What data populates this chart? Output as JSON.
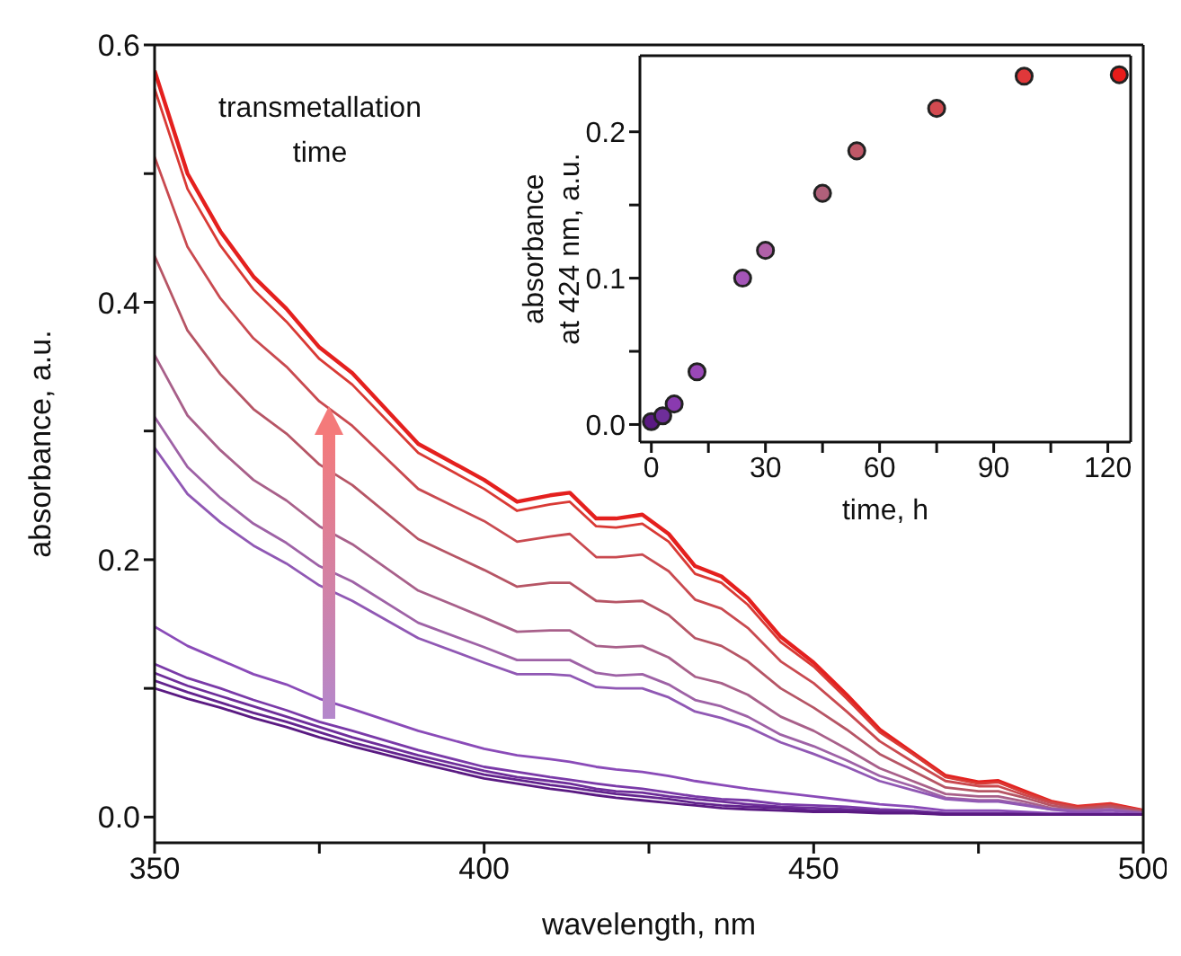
{
  "chart_data": [
    {
      "type": "line",
      "xlabel": "wavelength, nm",
      "ylabel": "absorbance, a.u.",
      "annotations": [
        "transmetallation time"
      ],
      "marker": "none",
      "line_style": "solid",
      "xlim": [
        350,
        500
      ],
      "ylim": [
        -0.02,
        0.6
      ],
      "xticks": [
        350,
        {
          "value": 375,
          "label": null
        },
        400,
        {
          "value": 425,
          "label": null
        },
        450,
        {
          "value": 475,
          "label": null
        },
        500
      ],
      "yticks": [
        {
          "value": 0,
          "label": "0.0"
        },
        {
          "value": 0.1,
          "label": null
        },
        0.2,
        {
          "value": 0.3,
          "label": null
        },
        0.4,
        {
          "value": 0.5,
          "label": null
        },
        0.6
      ],
      "x": [
        350,
        355,
        360,
        365,
        370,
        375,
        380,
        390,
        400,
        405,
        410,
        413,
        417,
        420,
        424,
        428,
        432,
        436,
        440,
        445,
        450,
        455,
        460,
        465,
        470,
        475,
        478,
        482,
        486,
        490,
        495,
        500
      ],
      "series": [
        {
          "color": "#e4201e",
          "values": [
            0.58,
            0.5,
            0.455,
            0.42,
            0.395,
            0.365,
            0.345,
            0.29,
            0.262,
            0.245,
            0.25,
            0.252,
            0.232,
            0.232,
            0.235,
            0.22,
            0.195,
            0.187,
            0.17,
            0.14,
            0.12,
            0.095,
            0.068,
            0.05,
            0.032,
            0.027,
            0.028,
            0.02,
            0.012,
            0.008,
            0.01,
            0.005
          ]
        },
        {
          "color": "#d93a35",
          "values": [
            0.566,
            0.488,
            0.444,
            0.41,
            0.385,
            0.356,
            0.336,
            0.283,
            0.255,
            0.238,
            0.243,
            0.245,
            0.226,
            0.225,
            0.228,
            0.214,
            0.189,
            0.182,
            0.165,
            0.136,
            0.117,
            0.092,
            0.066,
            0.049,
            0.031,
            0.026,
            0.027,
            0.019,
            0.012,
            0.008,
            0.01,
            0.005
          ]
        },
        {
          "color": "#c94a50",
          "values": [
            0.513,
            0.443,
            0.403,
            0.372,
            0.35,
            0.323,
            0.304,
            0.255,
            0.23,
            0.214,
            0.218,
            0.22,
            0.202,
            0.202,
            0.204,
            0.191,
            0.169,
            0.162,
            0.147,
            0.121,
            0.104,
            0.082,
            0.059,
            0.043,
            0.028,
            0.024,
            0.024,
            0.017,
            0.011,
            0.007,
            0.009,
            0.005
          ]
        },
        {
          "color": "#b65565",
          "values": [
            0.436,
            0.378,
            0.344,
            0.317,
            0.298,
            0.274,
            0.258,
            0.216,
            0.192,
            0.179,
            0.182,
            0.182,
            0.168,
            0.167,
            0.168,
            0.157,
            0.139,
            0.133,
            0.121,
            0.1,
            0.085,
            0.068,
            0.049,
            0.036,
            0.023,
            0.02,
            0.02,
            0.015,
            0.009,
            0.006,
            0.008,
            0.004
          ]
        },
        {
          "color": "#a8608a",
          "values": [
            0.359,
            0.312,
            0.285,
            0.262,
            0.246,
            0.226,
            0.212,
            0.176,
            0.155,
            0.144,
            0.145,
            0.145,
            0.133,
            0.132,
            0.133,
            0.124,
            0.109,
            0.104,
            0.095,
            0.078,
            0.067,
            0.053,
            0.038,
            0.028,
            0.018,
            0.016,
            0.016,
            0.012,
            0.007,
            0.005,
            0.006,
            0.004
          ]
        },
        {
          "color": "#9e62a6",
          "values": [
            0.311,
            0.272,
            0.248,
            0.228,
            0.213,
            0.195,
            0.183,
            0.151,
            0.132,
            0.122,
            0.122,
            0.122,
            0.112,
            0.11,
            0.111,
            0.103,
            0.091,
            0.086,
            0.078,
            0.064,
            0.055,
            0.044,
            0.032,
            0.024,
            0.015,
            0.013,
            0.013,
            0.01,
            0.006,
            0.005,
            0.006,
            0.003
          ]
        },
        {
          "color": "#9058b4",
          "values": [
            0.287,
            0.251,
            0.229,
            0.211,
            0.197,
            0.18,
            0.168,
            0.139,
            0.12,
            0.111,
            0.111,
            0.11,
            0.101,
            0.1,
            0.1,
            0.093,
            0.082,
            0.077,
            0.07,
            0.058,
            0.049,
            0.039,
            0.028,
            0.021,
            0.014,
            0.012,
            0.012,
            0.009,
            0.006,
            0.004,
            0.005,
            0.003
          ]
        },
        {
          "color": "#8a4bb8",
          "values": [
            0.148,
            0.133,
            0.122,
            0.111,
            0.103,
            0.092,
            0.084,
            0.067,
            0.053,
            0.048,
            0.045,
            0.043,
            0.039,
            0.037,
            0.035,
            0.032,
            0.028,
            0.025,
            0.022,
            0.019,
            0.016,
            0.013,
            0.01,
            0.008,
            0.005,
            0.005,
            0.005,
            0.004,
            0.003,
            0.003,
            0.003,
            0.002
          ]
        },
        {
          "color": "#7a3aa8",
          "values": [
            0.119,
            0.108,
            0.1,
            0.091,
            0.083,
            0.074,
            0.067,
            0.052,
            0.039,
            0.035,
            0.031,
            0.029,
            0.026,
            0.024,
            0.022,
            0.019,
            0.016,
            0.014,
            0.013,
            0.01,
            0.009,
            0.008,
            0.006,
            0.005,
            0.003,
            0.003,
            0.003,
            0.003,
            0.002,
            0.002,
            0.002,
            0.002
          ]
        },
        {
          "color": "#6e2e9a",
          "values": [
            0.112,
            0.102,
            0.094,
            0.086,
            0.078,
            0.07,
            0.062,
            0.048,
            0.036,
            0.031,
            0.028,
            0.026,
            0.022,
            0.02,
            0.019,
            0.016,
            0.014,
            0.012,
            0.01,
            0.008,
            0.007,
            0.006,
            0.005,
            0.004,
            0.003,
            0.003,
            0.003,
            0.002,
            0.002,
            0.002,
            0.002,
            0.002
          ]
        },
        {
          "color": "#63248e",
          "values": [
            0.106,
            0.097,
            0.089,
            0.081,
            0.074,
            0.066,
            0.058,
            0.045,
            0.033,
            0.029,
            0.025,
            0.023,
            0.02,
            0.018,
            0.016,
            0.014,
            0.011,
            0.009,
            0.008,
            0.007,
            0.005,
            0.005,
            0.004,
            0.004,
            0.002,
            0.002,
            0.002,
            0.002,
            0.002,
            0.002,
            0.002,
            0.002
          ]
        },
        {
          "color": "#5a1a82",
          "values": [
            0.1,
            0.092,
            0.085,
            0.077,
            0.07,
            0.062,
            0.055,
            0.042,
            0.03,
            0.026,
            0.022,
            0.02,
            0.017,
            0.015,
            0.013,
            0.011,
            0.009,
            0.007,
            0.006,
            0.005,
            0.004,
            0.004,
            0.003,
            0.003,
            0.002,
            0.002,
            0.002,
            0.002,
            0.002,
            0.002,
            0.002,
            0.002
          ]
        }
      ]
    },
    {
      "type": "scatter",
      "xlabel": "time, h",
      "ylabel": "absorbance at 424 nm, a.u.",
      "marker": "circle",
      "xlim": [
        -3,
        126
      ],
      "ylim": [
        -0.012,
        0.252
      ],
      "xticks": [
        0,
        {
          "value": 15,
          "label": null
        },
        30,
        {
          "value": 45,
          "label": null
        },
        60,
        {
          "value": 75,
          "label": null
        },
        90,
        {
          "value": 105,
          "label": null
        },
        120
      ],
      "yticks": [
        {
          "value": 0,
          "label": "0.0"
        },
        {
          "value": 0.05,
          "label": null
        },
        0.1,
        {
          "value": 0.15,
          "label": null
        },
        0.2
      ],
      "x": [
        0,
        3,
        6,
        12,
        24,
        30,
        45,
        54,
        75,
        98,
        123
      ],
      "values": [
        0.002,
        0.006,
        0.014,
        0.036,
        0.1,
        0.119,
        0.158,
        0.187,
        0.216,
        0.238,
        0.239
      ],
      "colors": [
        "#5a1a82",
        "#6e2e9a",
        "#8a3ab0",
        "#9a48b8",
        "#a455b8",
        "#b060a8",
        "#b0607a",
        "#c05868",
        "#d24a50",
        "#e0383a",
        "#e81c1a"
      ]
    }
  ]
}
